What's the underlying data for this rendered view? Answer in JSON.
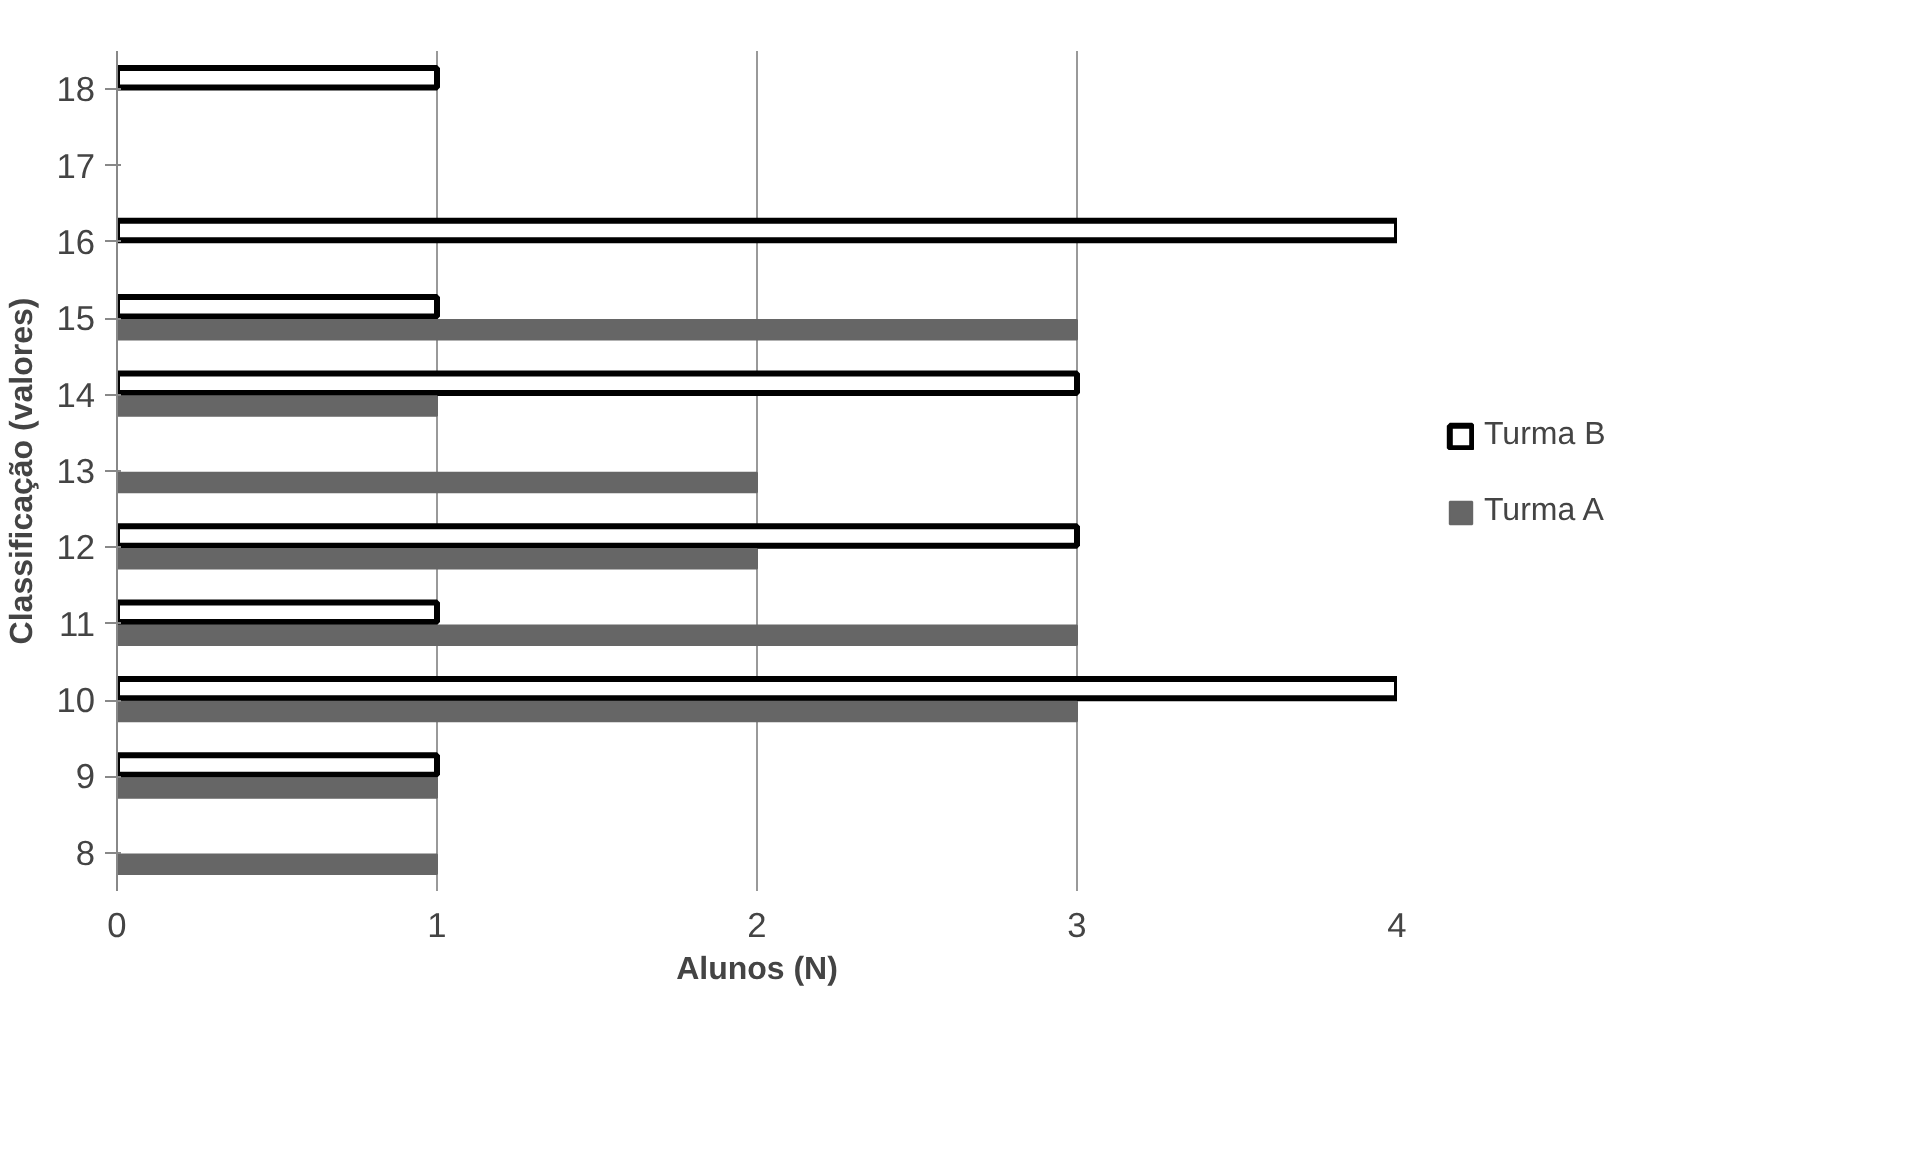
{
  "chart_data": {
    "type": "bar",
    "orientation": "horizontal",
    "xlabel": "Alunos (N)",
    "ylabel": "Classificação (valores)",
    "categories": [
      "18",
      "17",
      "16",
      "15",
      "14",
      "13",
      "12",
      "11",
      "10",
      "9",
      "8"
    ],
    "series": [
      {
        "name": "Turma B",
        "color": "#ffffff",
        "values": [
          1,
          null,
          4,
          1,
          3,
          null,
          3,
          1,
          4,
          1,
          null
        ]
      },
      {
        "name": "Turma A",
        "color": "#666666",
        "values": [
          null,
          null,
          null,
          3,
          1,
          2,
          2,
          3,
          3,
          1,
          1
        ]
      }
    ],
    "xlim": [
      0,
      4
    ],
    "xticks": [
      0,
      1,
      2,
      3,
      4
    ],
    "grid": "x",
    "legend": "right"
  }
}
